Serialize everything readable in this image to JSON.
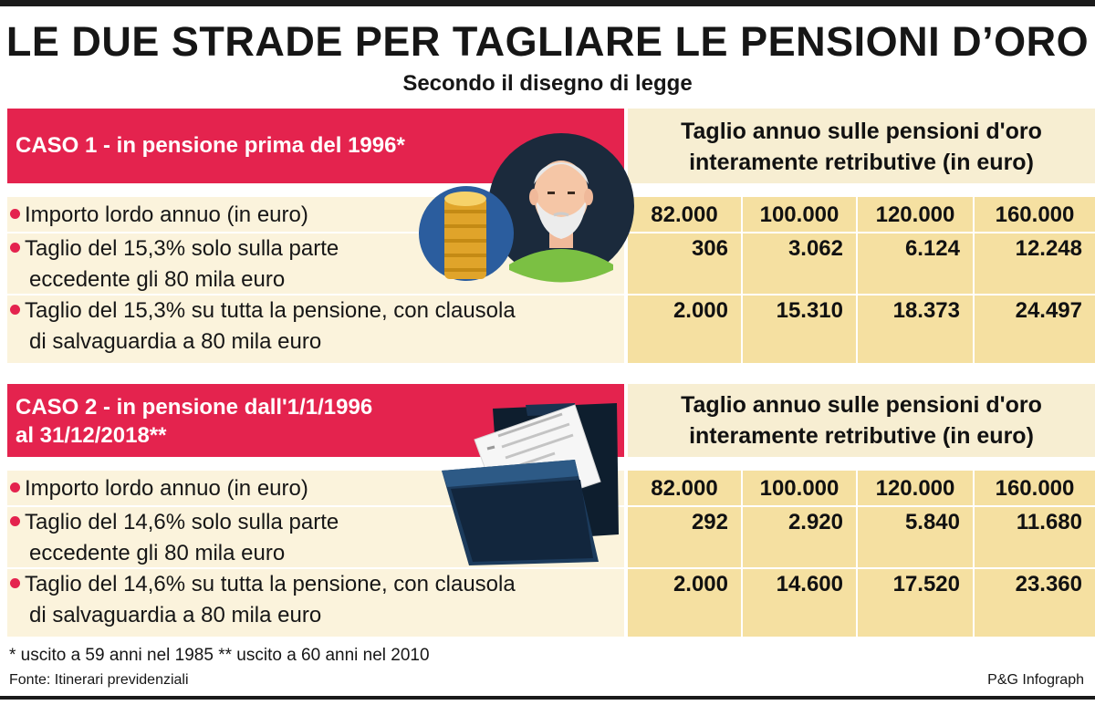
{
  "title": "LE DUE STRADE PER TAGLIARE LE PENSIONI D’ORO",
  "subtitle": "Secondo il disegno di legge",
  "colors": {
    "accent_red": "#e4234e",
    "header_beige": "#f7eed2",
    "cell_yellow": "#f5e0a1",
    "row_beige": "#fbf3dc"
  },
  "sections": [
    {
      "case_title": "CASO 1 - in pensione prima del 1996*",
      "case_title_line1": "CASO 1 - in pensione prima del 1996*",
      "case_title_line2": "",
      "column_header_line1": "Taglio annuo sulle pensioni d'oro",
      "column_header_line2": "interamente retributive (in euro)",
      "icon": "pensioner-and-coins-illustration",
      "rows": [
        {
          "label": "Importo lordo annuo (in euro)",
          "label_line2": "",
          "values": [
            "82.000",
            "100.000",
            "120.000",
            "160.000"
          ]
        },
        {
          "label": "Taglio del 15,3% solo sulla parte",
          "label_line2": "eccedente gli 80 mila euro",
          "values": [
            "306",
            "3.062",
            "6.124",
            "12.248"
          ]
        },
        {
          "label": "Taglio del 15,3% su tutta la pensione, con clausola",
          "label_line2": "di salvaguardia a 80 mila euro",
          "values": [
            "2.000",
            "15.310",
            "18.373",
            "24.497"
          ]
        }
      ]
    },
    {
      "case_title": "CASO 2 - in pensione dall'1/1/1996 al 31/12/2018**",
      "case_title_line1": "CASO 2 - in pensione dall'1/1/1996",
      "case_title_line2": "al 31/12/2018**",
      "column_header_line1": "Taglio annuo sulle pensioni d'oro",
      "column_header_line2": "interamente retributive (in euro)",
      "icon": "folder-with-documents-illustration",
      "rows": [
        {
          "label": "Importo lordo annuo (in euro)",
          "label_line2": "",
          "values": [
            "82.000",
            "100.000",
            "120.000",
            "160.000"
          ]
        },
        {
          "label": "Taglio del 14,6% solo sulla parte",
          "label_line2": "eccedente gli 80 mila euro",
          "values": [
            "292",
            "2.920",
            "5.840",
            "11.680"
          ]
        },
        {
          "label": "Taglio del 14,6% su tutta la pensione, con clausola",
          "label_line2": "di salvaguardia a 80 mila euro",
          "values": [
            "2.000",
            "14.600",
            "17.520",
            "23.360"
          ]
        }
      ]
    }
  ],
  "footnote": "* uscito a 59 anni nel 1985 ** uscito a 60 anni nel 2010",
  "source": "Fonte: Itinerari previdenziali",
  "credit": "P&G Infograph"
}
